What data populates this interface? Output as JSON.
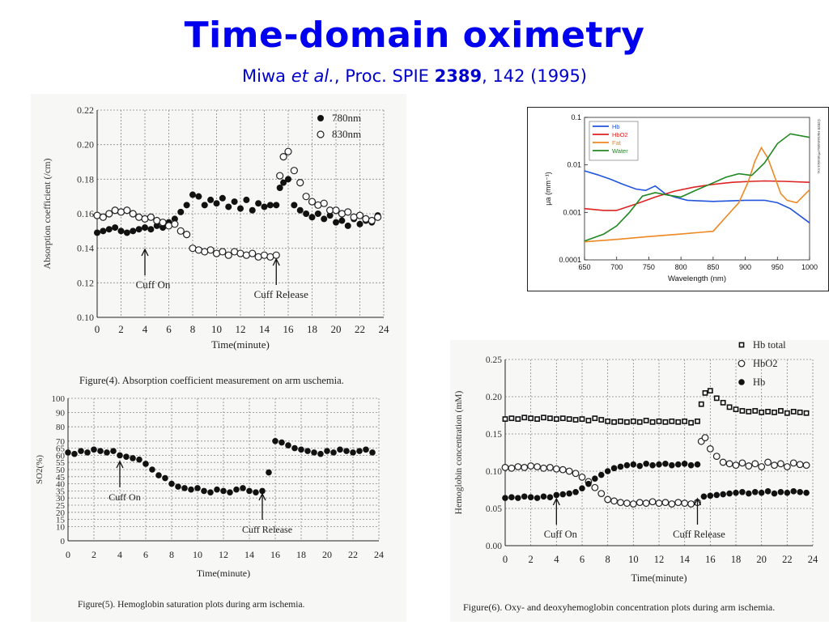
{
  "slide": {
    "title": "Time-domain oximetry",
    "sub_authors": "Miwa ",
    "sub_etal": "et al.",
    "sub_journal": ", Proc. SPIE ",
    "sub_volume": "2389",
    "sub_rest": ", 142 (1995)"
  },
  "chart_data": [
    {
      "id": "fig4",
      "type": "scatter",
      "caption": "Figure(4). Absorption coefficient measurement on arm uschemia.",
      "xlabel": "Time(minute)",
      "ylabel": "Absorption coefficient (/cm)",
      "xlim": [
        0,
        24
      ],
      "ylim": [
        0.1,
        0.22
      ],
      "xticks": [
        "0",
        "2",
        "4",
        "6",
        "8",
        "10",
        "12",
        "14",
        "16",
        "18",
        "20",
        "22",
        "24"
      ],
      "yticks": [
        "0.10",
        "0.12",
        "0.14",
        "0.16",
        "0.18",
        "0.20",
        "0.22"
      ],
      "legend": [
        "780nm",
        "830nm"
      ],
      "annotations": [
        "Cuff On",
        "Cuff Release"
      ],
      "annotation_x": [
        4,
        15
      ],
      "series": [
        {
          "name": "780nm",
          "marker": "filled-circle",
          "x": [
            0,
            0.5,
            1,
            1.5,
            2,
            2.5,
            3,
            3.5,
            4,
            4.5,
            5,
            5.5,
            6,
            6.5,
            7,
            7.5,
            8,
            8.5,
            9,
            9.5,
            10,
            10.5,
            11,
            11.5,
            12,
            12.5,
            13,
            13.5,
            14,
            14.5,
            15,
            15.3,
            15.6,
            16,
            16.5,
            17,
            17.5,
            18,
            18.5,
            19,
            19.5,
            20,
            20.5,
            21,
            21.5,
            22,
            22.5,
            23,
            23.5
          ],
          "y": [
            0.149,
            0.15,
            0.151,
            0.152,
            0.15,
            0.149,
            0.15,
            0.151,
            0.152,
            0.151,
            0.153,
            0.152,
            0.155,
            0.157,
            0.161,
            0.165,
            0.171,
            0.17,
            0.165,
            0.168,
            0.166,
            0.169,
            0.164,
            0.167,
            0.163,
            0.168,
            0.162,
            0.166,
            0.164,
            0.165,
            0.165,
            0.175,
            0.178,
            0.18,
            0.165,
            0.162,
            0.16,
            0.158,
            0.16,
            0.157,
            0.159,
            0.155,
            0.156,
            0.153,
            0.157,
            0.154,
            0.156,
            0.155,
            0.159
          ]
        },
        {
          "name": "830nm",
          "marker": "open-circle",
          "x": [
            0,
            0.5,
            1,
            1.5,
            2,
            2.5,
            3,
            3.5,
            4,
            4.5,
            5,
            5.5,
            6,
            6.5,
            7,
            7.5,
            8,
            8.5,
            9,
            9.5,
            10,
            10.5,
            11,
            11.5,
            12,
            12.5,
            13,
            13.5,
            14,
            14.5,
            15,
            15.3,
            15.6,
            16,
            16.5,
            17,
            17.5,
            18,
            18.5,
            19,
            19.5,
            20,
            20.5,
            21,
            21.5,
            22,
            22.5,
            23,
            23.5
          ],
          "y": [
            0.159,
            0.158,
            0.16,
            0.162,
            0.161,
            0.162,
            0.16,
            0.158,
            0.157,
            0.158,
            0.156,
            0.155,
            0.153,
            0.154,
            0.15,
            0.148,
            0.14,
            0.139,
            0.138,
            0.139,
            0.137,
            0.138,
            0.136,
            0.138,
            0.137,
            0.136,
            0.137,
            0.135,
            0.136,
            0.135,
            0.136,
            0.182,
            0.193,
            0.196,
            0.185,
            0.178,
            0.17,
            0.167,
            0.165,
            0.166,
            0.162,
            0.162,
            0.16,
            0.161,
            0.158,
            0.159,
            0.157,
            0.156,
            0.158
          ]
        }
      ]
    },
    {
      "id": "fig5",
      "type": "scatter",
      "caption": "Figure(5). Hemoglobin saturation plots during arm ischemia.",
      "xlabel": "Time(minute)",
      "ylabel": "SO2(%)",
      "xlim": [
        0,
        24
      ],
      "ylim": [
        0,
        100
      ],
      "xticks": [
        "0",
        "2",
        "4",
        "6",
        "8",
        "10",
        "12",
        "14",
        "16",
        "18",
        "20",
        "22",
        "24"
      ],
      "yticks": [
        "0",
        "10",
        "15",
        "20",
        "25",
        "30",
        "35",
        "40",
        "45",
        "50",
        "55",
        "60",
        "65",
        "70",
        "80",
        "90",
        "100"
      ],
      "annotations": [
        "Cuff On",
        "Cuff Release"
      ],
      "annotation_x": [
        4,
        15
      ],
      "series": [
        {
          "name": "SO2",
          "marker": "filled-circle",
          "x": [
            0,
            0.5,
            1,
            1.5,
            2,
            2.5,
            3,
            3.5,
            4,
            4.5,
            5,
            5.5,
            6,
            6.5,
            7,
            7.5,
            8,
            8.5,
            9,
            9.5,
            10,
            10.5,
            11,
            11.5,
            12,
            12.5,
            13,
            13.5,
            14,
            14.5,
            15,
            15.5,
            16,
            16.5,
            17,
            17.5,
            18,
            18.5,
            19,
            19.5,
            20,
            20.5,
            21,
            21.5,
            22,
            22.5,
            23,
            23.5
          ],
          "y": [
            62,
            61,
            63,
            62,
            64,
            63,
            62,
            63,
            60,
            59,
            58,
            57,
            54,
            50,
            46,
            44,
            40,
            38,
            37,
            36,
            37,
            35,
            34,
            36,
            35,
            34,
            36,
            37,
            35,
            34,
            35,
            48,
            70,
            69,
            67,
            65,
            64,
            63,
            62,
            61,
            63,
            62,
            64,
            63,
            62,
            63,
            64,
            62
          ]
        }
      ]
    },
    {
      "id": "fig6",
      "type": "scatter",
      "caption": "Figure(6). Oxy- and deoxyhemoglobin concentration plots during arm ischemia.",
      "xlabel": "Time(minute)",
      "ylabel": "Hemoglobin concentration (mM)",
      "xlim": [
        0,
        24
      ],
      "ylim": [
        0,
        0.25
      ],
      "xticks": [
        "0",
        "2",
        "4",
        "6",
        "8",
        "10",
        "12",
        "14",
        "16",
        "18",
        "20",
        "22",
        "24"
      ],
      "yticks": [
        "0.00",
        "0.05",
        "0.10",
        "0.15",
        "0.20",
        "0.25"
      ],
      "legend": [
        "Hb total",
        "HbO2",
        "Hb"
      ],
      "annotations": [
        "Cuff On",
        "Cuff Release"
      ],
      "annotation_x": [
        4,
        15
      ],
      "series": [
        {
          "name": "Hb total",
          "marker": "open-square",
          "x": [
            0,
            0.5,
            1,
            1.5,
            2,
            2.5,
            3,
            3.5,
            4,
            4.5,
            5,
            5.5,
            6,
            6.5,
            7,
            7.5,
            8,
            8.5,
            9,
            9.5,
            10,
            10.5,
            11,
            11.5,
            12,
            12.5,
            13,
            13.5,
            14,
            14.5,
            15,
            15.3,
            15.6,
            16,
            16.5,
            17,
            17.5,
            18,
            18.5,
            19,
            19.5,
            20,
            20.5,
            21,
            21.5,
            22,
            22.5,
            23,
            23.5
          ],
          "y": [
            0.17,
            0.171,
            0.17,
            0.172,
            0.171,
            0.17,
            0.172,
            0.171,
            0.17,
            0.171,
            0.17,
            0.169,
            0.17,
            0.168,
            0.171,
            0.169,
            0.167,
            0.166,
            0.167,
            0.166,
            0.167,
            0.166,
            0.168,
            0.166,
            0.167,
            0.166,
            0.167,
            0.166,
            0.167,
            0.165,
            0.167,
            0.19,
            0.205,
            0.208,
            0.198,
            0.192,
            0.186,
            0.183,
            0.181,
            0.18,
            0.181,
            0.179,
            0.18,
            0.179,
            0.181,
            0.178,
            0.18,
            0.179,
            0.178
          ]
        },
        {
          "name": "HbO2",
          "marker": "open-circle",
          "x": [
            0,
            0.5,
            1,
            1.5,
            2,
            2.5,
            3,
            3.5,
            4,
            4.5,
            5,
            5.5,
            6,
            6.5,
            7,
            7.5,
            8,
            8.5,
            9,
            9.5,
            10,
            10.5,
            11,
            11.5,
            12,
            12.5,
            13,
            13.5,
            14,
            14.5,
            15,
            15.3,
            15.6,
            16,
            16.5,
            17,
            17.5,
            18,
            18.5,
            19,
            19.5,
            20,
            20.5,
            21,
            21.5,
            22,
            22.5,
            23,
            23.5
          ],
          "y": [
            0.105,
            0.104,
            0.106,
            0.105,
            0.107,
            0.106,
            0.104,
            0.105,
            0.103,
            0.102,
            0.1,
            0.097,
            0.092,
            0.086,
            0.078,
            0.07,
            0.062,
            0.06,
            0.058,
            0.057,
            0.056,
            0.058,
            0.057,
            0.059,
            0.057,
            0.058,
            0.056,
            0.058,
            0.057,
            0.056,
            0.058,
            0.14,
            0.145,
            0.13,
            0.12,
            0.112,
            0.11,
            0.108,
            0.111,
            0.107,
            0.11,
            0.106,
            0.112,
            0.108,
            0.11,
            0.106,
            0.111,
            0.109,
            0.108
          ]
        },
        {
          "name": "Hb",
          "marker": "filled-circle",
          "x": [
            0,
            0.5,
            1,
            1.5,
            2,
            2.5,
            3,
            3.5,
            4,
            4.5,
            5,
            5.5,
            6,
            6.5,
            7,
            7.5,
            8,
            8.5,
            9,
            9.5,
            10,
            10.5,
            11,
            11.5,
            12,
            12.5,
            13,
            13.5,
            14,
            14.5,
            15,
            15.5,
            16,
            16.5,
            17,
            17.5,
            18,
            18.5,
            19,
            19.5,
            20,
            20.5,
            21,
            21.5,
            22,
            22.5,
            23,
            23.5
          ],
          "y": [
            0.064,
            0.065,
            0.064,
            0.066,
            0.065,
            0.064,
            0.066,
            0.065,
            0.068,
            0.069,
            0.07,
            0.072,
            0.077,
            0.083,
            0.09,
            0.095,
            0.1,
            0.104,
            0.106,
            0.108,
            0.109,
            0.107,
            0.11,
            0.108,
            0.109,
            0.11,
            0.108,
            0.109,
            0.11,
            0.108,
            0.109,
            0.066,
            0.067,
            0.068,
            0.069,
            0.07,
            0.071,
            0.072,
            0.07,
            0.072,
            0.071,
            0.073,
            0.07,
            0.072,
            0.071,
            0.073,
            0.072,
            0.071
          ]
        }
      ]
    },
    {
      "id": "spectra",
      "type": "line",
      "xlabel": "Wavelength (nm)",
      "ylabel": "μa (mm⁻¹)",
      "xlim": [
        650,
        1000
      ],
      "ylim": [
        0.0001,
        0.1
      ],
      "yscale": "log",
      "xticks": [
        "650",
        "700",
        "750",
        "800",
        "850",
        "900",
        "950",
        "1000"
      ],
      "yticks": [
        "0.0001",
        "0.001",
        "0.01",
        "0.1"
      ],
      "legend": [
        "Hb",
        "HbO2",
        "Fat",
        "Water"
      ],
      "legend_position": "top-left",
      "watermark": "©2020 Hamamatsu Photonics Inc.",
      "series": [
        {
          "name": "Hb",
          "color": "#2255dd",
          "x": [
            650,
            670,
            690,
            710,
            730,
            745,
            760,
            775,
            790,
            810,
            850,
            900,
            930,
            950,
            970,
            1000
          ],
          "y": [
            0.0075,
            0.0062,
            0.005,
            0.0039,
            0.0031,
            0.0029,
            0.0036,
            0.0025,
            0.0021,
            0.0018,
            0.0017,
            0.0018,
            0.0018,
            0.0016,
            0.0012,
            0.0006
          ]
        },
        {
          "name": "HbO2",
          "color": "#dd2222",
          "x": [
            650,
            680,
            700,
            730,
            760,
            790,
            820,
            850,
            880,
            910,
            930,
            960,
            1000
          ],
          "y": [
            0.0012,
            0.0011,
            0.0011,
            0.0015,
            0.0021,
            0.0028,
            0.0034,
            0.0039,
            0.0043,
            0.0045,
            0.0046,
            0.0045,
            0.0043
          ]
        },
        {
          "name": "Fat",
          "color": "#ee8822",
          "x": [
            650,
            700,
            750,
            800,
            830,
            850,
            870,
            890,
            905,
            915,
            925,
            935,
            945,
            955,
            965,
            980,
            1000
          ],
          "y": [
            0.00024,
            0.00027,
            0.00031,
            0.00035,
            0.00038,
            0.0004,
            0.0008,
            0.0016,
            0.0045,
            0.012,
            0.023,
            0.014,
            0.006,
            0.0025,
            0.0018,
            0.0016,
            0.003
          ]
        },
        {
          "name": "Water",
          "color": "#228822",
          "x": [
            650,
            680,
            700,
            720,
            740,
            760,
            780,
            800,
            820,
            850,
            870,
            890,
            910,
            930,
            950,
            970,
            1000
          ],
          "y": [
            0.00025,
            0.00035,
            0.00052,
            0.001,
            0.0022,
            0.0026,
            0.0023,
            0.0021,
            0.0028,
            0.0042,
            0.0055,
            0.0065,
            0.006,
            0.011,
            0.028,
            0.045,
            0.038
          ]
        }
      ]
    }
  ]
}
